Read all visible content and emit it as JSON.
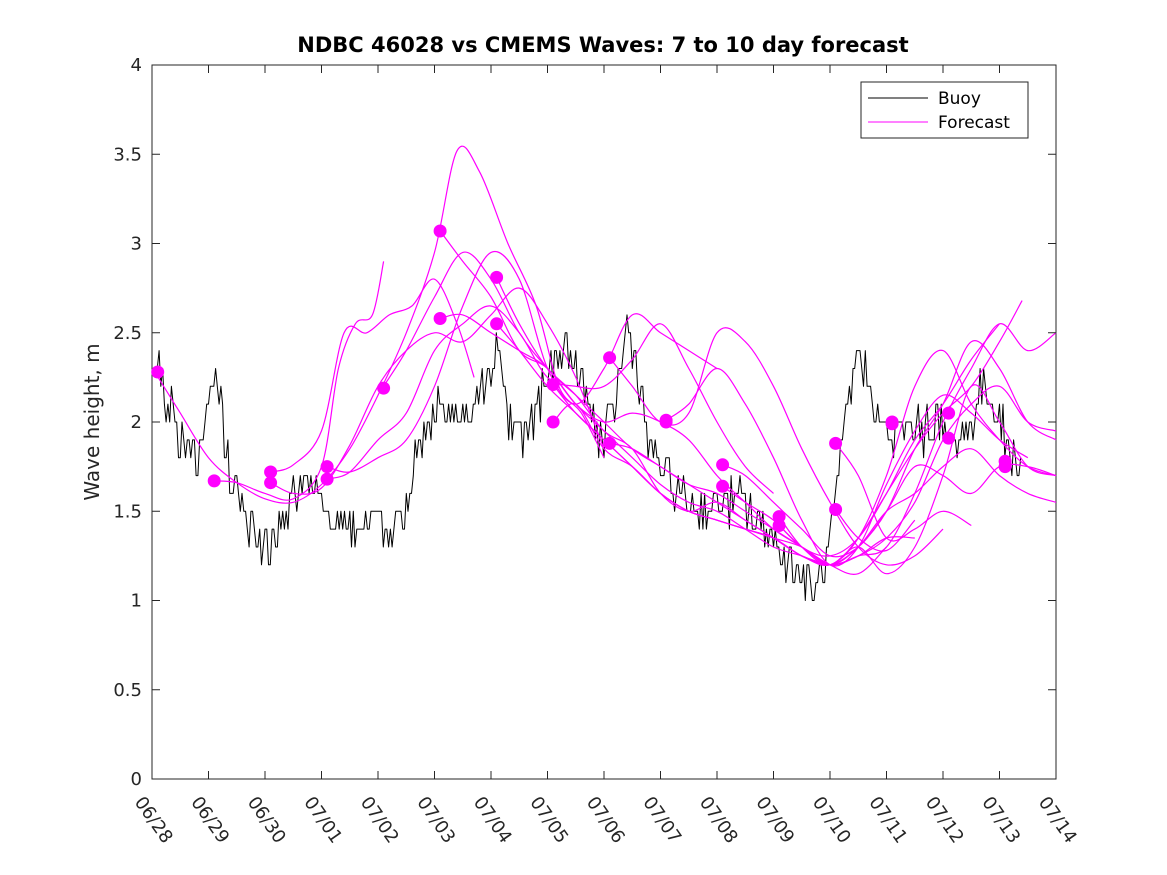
{
  "chart_data": {
    "type": "line",
    "title": "NDBC 46028 vs CMEMS Waves: 7 to 10 day forecast",
    "xlabel": "",
    "ylabel": "Wave height, m",
    "xlim": [
      0,
      16
    ],
    "ylim": [
      0,
      4
    ],
    "x_tick_values": [
      0,
      1,
      2,
      3,
      4,
      5,
      6,
      7,
      8,
      9,
      10,
      11,
      12,
      13,
      14,
      15,
      16
    ],
    "x_tick_labels": [
      "06/28",
      "06/29",
      "06/30",
      "07/01",
      "07/02",
      "07/03",
      "07/04",
      "07/05",
      "07/06",
      "07/07",
      "07/08",
      "07/09",
      "07/10",
      "07/11",
      "07/12",
      "07/13",
      "07/14"
    ],
    "y_ticks": [
      0,
      0.5,
      1,
      1.5,
      2,
      2.5,
      3,
      3.5,
      4
    ],
    "y_tick_labels": [
      "0",
      "0.5",
      "1",
      "1.5",
      "2",
      "2.5",
      "3",
      "3.5",
      "4"
    ],
    "grid": false,
    "legend_position": "top-right",
    "colors": {
      "buoy": "#000000",
      "forecast": "#ff00ff"
    },
    "buoy": {
      "name": "Buoy",
      "anchors": [
        [
          0,
          2.4
        ],
        [
          0.3,
          2.1
        ],
        [
          0.5,
          1.9
        ],
        [
          0.8,
          1.8
        ],
        [
          1.0,
          2.1
        ],
        [
          1.2,
          2.2
        ],
        [
          1.3,
          1.8
        ],
        [
          1.5,
          1.6
        ],
        [
          1.7,
          1.45
        ],
        [
          2.0,
          1.3
        ],
        [
          2.3,
          1.4
        ],
        [
          2.5,
          1.55
        ],
        [
          2.7,
          1.65
        ],
        [
          2.9,
          1.55
        ],
        [
          3.2,
          1.45
        ],
        [
          3.5,
          1.45
        ],
        [
          3.8,
          1.4
        ],
        [
          4.0,
          1.45
        ],
        [
          4.2,
          1.35
        ],
        [
          4.4,
          1.45
        ],
        [
          4.6,
          1.7
        ],
        [
          4.9,
          2.05
        ],
        [
          5.2,
          2.1
        ],
        [
          5.5,
          2.0
        ],
        [
          5.8,
          2.2
        ],
        [
          6.0,
          2.3
        ],
        [
          6.1,
          2.5
        ],
        [
          6.3,
          2.0
        ],
        [
          6.6,
          1.95
        ],
        [
          6.8,
          2.05
        ],
        [
          7.0,
          2.25
        ],
        [
          7.3,
          2.45
        ],
        [
          7.5,
          2.3
        ],
        [
          7.8,
          2.0
        ],
        [
          8.0,
          1.9
        ],
        [
          8.2,
          2.1
        ],
        [
          8.4,
          2.55
        ],
        [
          8.6,
          2.3
        ],
        [
          8.8,
          1.85
        ],
        [
          9.1,
          1.7
        ],
        [
          9.4,
          1.55
        ],
        [
          9.8,
          1.5
        ],
        [
          10.1,
          1.55
        ],
        [
          10.4,
          1.55
        ],
        [
          10.7,
          1.45
        ],
        [
          11.0,
          1.35
        ],
        [
          11.3,
          1.2
        ],
        [
          11.5,
          1.1
        ],
        [
          11.7,
          1.05
        ],
        [
          11.9,
          1.15
        ],
        [
          12.1,
          1.55
        ],
        [
          12.3,
          2.05
        ],
        [
          12.5,
          2.4
        ],
        [
          12.7,
          2.2
        ],
        [
          12.9,
          1.95
        ],
        [
          13.1,
          1.9
        ],
        [
          13.3,
          1.95
        ],
        [
          13.6,
          1.95
        ],
        [
          13.9,
          2.0
        ],
        [
          14.2,
          1.85
        ],
        [
          14.5,
          2.0
        ],
        [
          14.7,
          2.2
        ],
        [
          14.9,
          2.1
        ],
        [
          15.2,
          1.8
        ],
        [
          15.4,
          1.8
        ]
      ],
      "jitter_seed": 46028,
      "jitter_amplitude_m": 0.12,
      "sample_step_days": 0.03125
    },
    "forecast_series": [
      {
        "x": [
          0.05,
          0.5,
          1.0,
          1.5,
          2.0,
          2.5,
          3.0,
          3.5,
          4.0,
          4.5,
          5.0,
          5.4,
          5.8,
          6.3,
          6.8,
          7.2,
          7.6,
          8.0
        ],
        "y": [
          2.28,
          2.05,
          1.8,
          1.66,
          1.57,
          1.55,
          1.65,
          1.85,
          2.15,
          2.5,
          2.95,
          3.52,
          3.4,
          3.0,
          2.65,
          2.2,
          2.05,
          1.8
        ]
      },
      {
        "x": [
          1.1,
          1.5,
          2.0,
          2.5,
          3.0,
          3.3,
          3.6,
          3.9,
          4.1
        ],
        "y": [
          1.67,
          1.66,
          1.6,
          1.57,
          1.75,
          2.3,
          2.55,
          2.6,
          2.9
        ]
      },
      {
        "x": [
          2.1,
          2.5,
          3.0,
          3.4,
          3.8,
          4.2,
          4.6,
          5.0,
          5.4,
          5.7
        ],
        "y": [
          1.72,
          1.76,
          1.95,
          2.5,
          2.5,
          2.6,
          2.65,
          2.8,
          2.55,
          2.25
        ]
      },
      {
        "x": [
          2.1,
          2.5,
          3.0,
          3.5,
          4.0,
          4.5,
          5.0,
          5.5,
          6.0,
          6.5,
          7.0,
          7.5,
          8.0
        ],
        "y": [
          1.66,
          1.6,
          1.63,
          1.87,
          2.2,
          2.4,
          2.5,
          2.45,
          2.6,
          2.75,
          2.55,
          2.25,
          1.85
        ]
      },
      {
        "x": [
          3.1,
          3.5,
          4.0,
          4.5,
          5.0,
          5.5,
          6.0,
          6.5,
          7.0,
          7.5,
          8.0,
          8.5,
          9.0,
          9.5,
          10.0
        ],
        "y": [
          1.75,
          1.72,
          1.8,
          1.9,
          2.2,
          2.65,
          2.95,
          2.8,
          2.3,
          2.1,
          2.3,
          2.6,
          2.5,
          2.4,
          2.3
        ]
      },
      {
        "x": [
          3.1,
          3.5,
          4.0,
          4.5,
          5.0,
          5.5,
          6.0,
          6.5,
          7.0,
          7.5,
          8.0,
          8.5,
          9.0,
          9.5,
          10.0,
          10.5,
          11.0
        ],
        "y": [
          1.68,
          1.72,
          1.9,
          2.05,
          2.4,
          2.55,
          2.65,
          2.5,
          2.25,
          2.2,
          2.2,
          2.35,
          2.55,
          2.3,
          2.0,
          1.75,
          1.6
        ]
      },
      {
        "x": [
          4.1,
          4.5,
          5.0,
          5.5,
          6.0,
          6.5,
          7.0,
          7.5,
          8.0,
          8.5,
          9.0,
          9.5,
          10.0,
          10.5,
          11.0,
          11.5,
          12.0
        ],
        "y": [
          2.2,
          2.4,
          2.7,
          2.95,
          2.8,
          2.5,
          2.3,
          2.15,
          1.95,
          1.85,
          1.6,
          1.5,
          1.55,
          1.45,
          1.35,
          1.25,
          1.2
        ]
      },
      {
        "x": [
          5.1,
          5.5,
          6.0,
          6.5,
          7.0,
          7.5,
          8.0,
          8.5,
          9.0,
          9.5,
          10.0,
          10.5,
          11.0,
          11.5,
          12.0,
          12.5,
          13.0,
          13.5,
          14.0,
          14.5,
          15.0,
          15.5,
          16.0
        ],
        "y": [
          3.07,
          2.9,
          2.7,
          2.4,
          2.3,
          2.1,
          1.95,
          1.8,
          1.65,
          1.55,
          1.5,
          1.4,
          1.3,
          1.25,
          1.2,
          1.3,
          1.5,
          1.85,
          2.1,
          2.45,
          2.3,
          2.0,
          1.9
        ]
      },
      {
        "x": [
          5.1,
          5.5,
          6.0,
          6.5,
          7.0,
          7.5,
          8.0,
          8.5,
          9.0,
          9.5,
          10.0,
          10.5,
          11.0,
          11.5,
          12.0,
          12.5,
          13.0
        ],
        "y": [
          2.58,
          2.6,
          2.5,
          2.4,
          2.3,
          2.1,
          2.0,
          2.05,
          2.0,
          1.9,
          1.7,
          1.55,
          1.4,
          1.3,
          1.2,
          1.15,
          1.3
        ]
      },
      {
        "x": [
          6.1,
          6.5,
          7.0,
          7.5,
          8.0,
          8.5,
          9.0,
          9.5,
          10.0,
          10.5,
          11.0,
          11.5,
          12.0,
          12.5,
          13.0,
          13.5,
          14.0,
          14.5,
          15.0,
          15.5,
          16.0
        ],
        "y": [
          2.81,
          2.55,
          2.3,
          2.15,
          2.0,
          1.85,
          1.75,
          1.65,
          1.55,
          1.45,
          1.35,
          1.25,
          1.2,
          1.25,
          1.35,
          1.55,
          1.9,
          2.1,
          2.2,
          2.0,
          1.95
        ]
      },
      {
        "x": [
          6.1,
          6.5,
          7.0,
          7.5,
          8.0,
          8.5,
          9.0,
          9.5,
          10.0,
          10.5,
          11.0,
          11.5,
          12.0,
          12.5,
          13.0,
          13.5,
          14.0,
          14.5,
          15.0,
          15.5,
          16.0
        ],
        "y": [
          2.55,
          2.4,
          2.2,
          2.05,
          1.9,
          1.75,
          1.6,
          1.5,
          1.45,
          1.4,
          1.35,
          1.25,
          1.2,
          1.35,
          1.7,
          2.2,
          2.4,
          2.1,
          1.9,
          1.75,
          1.7
        ]
      },
      {
        "x": [
          7.1,
          7.5,
          8.0,
          8.5,
          9.0,
          9.5,
          10.0,
          10.5,
          11.0,
          11.5,
          12.0,
          12.5,
          13.0,
          13.5,
          14.0,
          14.5,
          15.0,
          15.5,
          16.0
        ],
        "y": [
          2.21,
          2.05,
          1.9,
          1.75,
          1.6,
          1.5,
          1.45,
          1.4,
          1.35,
          1.25,
          1.2,
          1.3,
          1.15,
          1.3,
          1.7,
          2.2,
          2.0,
          1.75,
          1.7
        ]
      },
      {
        "x": [
          7.1,
          7.5,
          8.0,
          8.5,
          9.0,
          9.5,
          10.0,
          10.5,
          11.0,
          11.5,
          12.0,
          12.5,
          13.0,
          13.5,
          14.0,
          14.5,
          15.0,
          15.5,
          16.0
        ],
        "y": [
          2.0,
          2.1,
          1.85,
          1.75,
          1.6,
          1.5,
          1.45,
          1.4,
          1.35,
          1.3,
          1.2,
          1.25,
          1.3,
          1.6,
          2.0,
          2.3,
          2.55,
          2.4,
          2.5
        ]
      },
      {
        "x": [
          8.1,
          8.5,
          9.0,
          9.5,
          10.0,
          10.5,
          11.0,
          11.5,
          12.0,
          12.5,
          13.0,
          13.5,
          14.0
        ],
        "y": [
          2.36,
          2.2,
          2.0,
          2.05,
          2.5,
          2.45,
          2.2,
          1.85,
          1.55,
          1.3,
          1.2,
          1.25,
          1.4
        ]
      },
      {
        "x": [
          8.1,
          8.5,
          9.0,
          9.5,
          10.0,
          10.5,
          11.0,
          11.5,
          12.0,
          12.5,
          13.0,
          13.5,
          14.0,
          14.5,
          15.0,
          15.5,
          16.0
        ],
        "y": [
          1.88,
          1.85,
          1.75,
          1.65,
          1.6,
          1.5,
          1.4,
          1.3,
          1.2,
          1.3,
          1.5,
          1.6,
          1.75,
          1.85,
          1.7,
          1.6,
          1.55
        ]
      },
      {
        "x": [
          9.1,
          9.5,
          10.0,
          10.5,
          11.0,
          11.5,
          12.0,
          12.5,
          13.0,
          13.5,
          14.0,
          14.5,
          15.0,
          15.5
        ],
        "y": [
          2.01,
          2.1,
          2.3,
          2.1,
          1.8,
          1.45,
          1.2,
          1.3,
          1.65,
          1.95,
          2.15,
          2.05,
          1.9,
          1.8
        ]
      },
      {
        "x": [
          10.1,
          10.5,
          11.0,
          11.5,
          12.0,
          12.5,
          13.0,
          13.5,
          14.0,
          14.5,
          15.0,
          15.5,
          16.0
        ],
        "y": [
          1.76,
          1.7,
          1.55,
          1.4,
          1.25,
          1.3,
          1.5,
          1.75,
          1.7,
          1.6,
          1.75,
          1.75,
          1.7
        ]
      },
      {
        "x": [
          10.1,
          10.5,
          11.0,
          11.5,
          12.0,
          12.5,
          13.0,
          13.5,
          14.0,
          14.5,
          15.0
        ],
        "y": [
          1.64,
          1.55,
          1.45,
          1.3,
          1.25,
          1.35,
          1.6,
          1.9,
          2.1,
          2.35,
          2.55
        ]
      },
      {
        "x": [
          11.1,
          11.5,
          12.0,
          12.5,
          13.0,
          13.5,
          14.0,
          14.5,
          15.0,
          15.4
        ],
        "y": [
          1.47,
          1.3,
          1.2,
          1.35,
          1.6,
          1.85,
          2.05,
          2.2,
          2.45,
          2.68
        ]
      },
      {
        "x": [
          11.1,
          11.5,
          12.0,
          12.5,
          13.0,
          13.5
        ],
        "y": [
          1.42,
          1.3,
          1.2,
          1.25,
          1.35,
          1.35
        ]
      },
      {
        "x": [
          12.1,
          12.5,
          13.0,
          13.5,
          14.0,
          14.5
        ],
        "y": [
          1.88,
          1.7,
          1.35,
          1.4,
          1.5,
          1.42
        ]
      },
      {
        "x": [
          12.1,
          12.5,
          13.0,
          13.5
        ],
        "y": [
          1.51,
          1.35,
          1.28,
          1.45
        ]
      }
    ],
    "forecast_dots": {
      "x": [
        0.1,
        1.1,
        2.1,
        2.1,
        3.1,
        3.1,
        4.1,
        5.1,
        5.1,
        6.1,
        6.1,
        7.1,
        7.1,
        8.1,
        8.1,
        9.1,
        9.1,
        10.1,
        10.1,
        11.1,
        11.1,
        12.1,
        12.1,
        13.1,
        13.1,
        14.1,
        14.1,
        15.1,
        15.1
      ],
      "y": [
        2.28,
        1.67,
        1.72,
        1.66,
        1.75,
        1.68,
        2.19,
        3.07,
        2.58,
        2.81,
        2.55,
        2.21,
        2.0,
        2.36,
        1.88,
        2.01,
        2.0,
        1.76,
        1.64,
        1.47,
        1.42,
        1.88,
        1.51,
        2.0,
        1.99,
        2.05,
        1.91,
        1.78,
        1.75
      ]
    },
    "legend": [
      {
        "label": "Buoy",
        "color": "#000000"
      },
      {
        "label": "Forecast",
        "color": "#ff00ff"
      }
    ]
  }
}
